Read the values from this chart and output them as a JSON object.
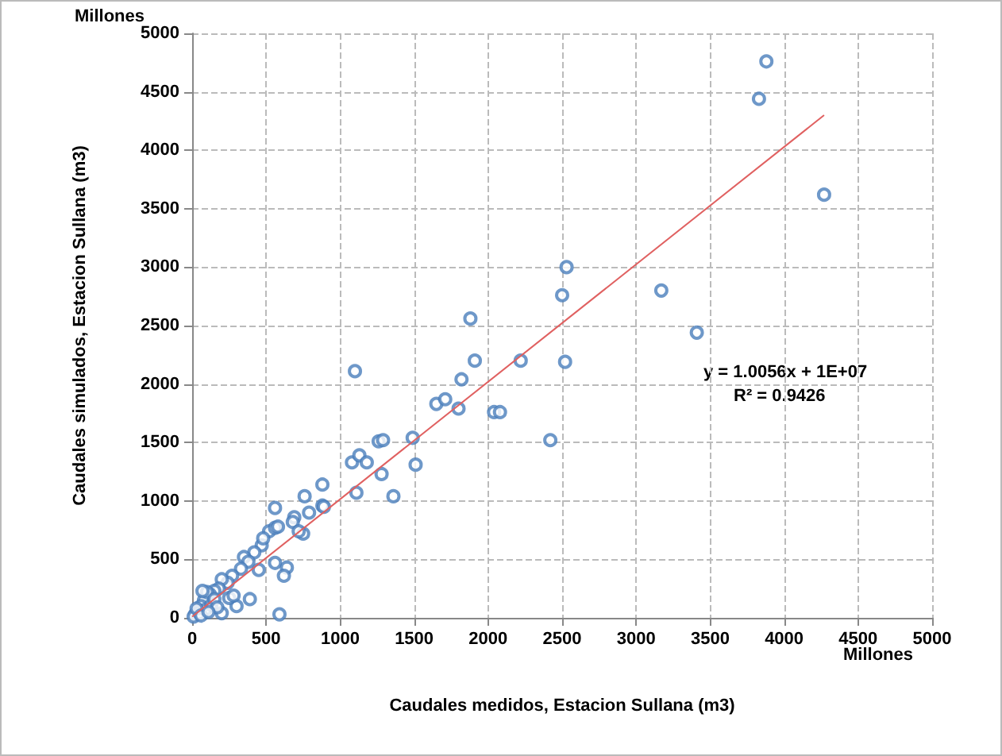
{
  "chart_data": {
    "type": "scatter",
    "xlabel": "Caudales medidos, Estacion Sullana (m3)",
    "ylabel": "Caudales simulados, Estacion Sullana (m3)",
    "annotations": [
      "Millones",
      "Millones",
      "y = 1.0056x + 1E+07",
      "R² = 0.9426"
    ],
    "xlim": [
      0,
      5000
    ],
    "xticks": [
      0,
      500,
      1000,
      1500,
      2000,
      2500,
      3000,
      3500,
      4000,
      4500,
      5000
    ],
    "ylim": [
      0,
      5000
    ],
    "yticks": [
      0,
      500,
      1000,
      1500,
      2000,
      2500,
      3000,
      3500,
      4000,
      4500,
      5000
    ],
    "grid": true,
    "series": [
      {
        "marker": "circle",
        "color": "#4a7ebb",
        "x": [
          3880,
          3830,
          4270,
          2530,
          2500,
          3170,
          3410,
          1880,
          1910,
          2220,
          2520,
          1100,
          1820,
          1650,
          1710,
          1800,
          2040,
          2080,
          2420,
          1260,
          1290,
          1490,
          1510,
          1080,
          1130,
          1180,
          1280,
          1360,
          1110,
          880,
          760,
          880,
          890,
          790,
          560,
          690,
          680,
          750,
          720,
          520,
          560,
          580,
          470,
          480,
          420,
          350,
          380,
          560,
          640,
          620,
          450,
          390,
          300,
          590,
          200,
          330,
          270,
          240,
          200,
          180,
          150,
          120,
          100,
          80,
          60,
          40,
          20,
          10,
          50,
          90,
          130,
          100,
          70,
          150,
          250,
          280,
          170,
          30,
          60,
          110
        ],
        "values": [
          4760,
          4440,
          3620,
          3000,
          2760,
          2800,
          2440,
          2560,
          2200,
          2200,
          2190,
          2110,
          2040,
          1830,
          1870,
          1790,
          1760,
          1760,
          1520,
          1510,
          1520,
          1540,
          1310,
          1330,
          1390,
          1330,
          1230,
          1040,
          1070,
          1140,
          1040,
          960,
          950,
          900,
          940,
          860,
          820,
          720,
          740,
          740,
          770,
          780,
          620,
          680,
          560,
          520,
          480,
          470,
          430,
          360,
          410,
          160,
          100,
          30,
          40,
          420,
          360,
          300,
          330,
          250,
          230,
          200,
          180,
          150,
          100,
          60,
          30,
          10,
          40,
          70,
          110,
          220,
          230,
          160,
          170,
          190,
          90,
          80,
          20,
          50
        ]
      },
      {
        "type": "line",
        "color": "#e06060",
        "line_style": "solid",
        "x": [
          0,
          4270
        ],
        "values": [
          10,
          4300
        ]
      }
    ]
  }
}
